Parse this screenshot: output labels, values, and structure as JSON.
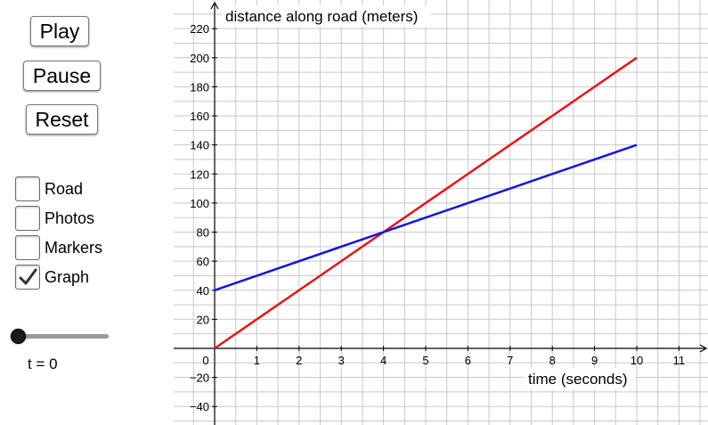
{
  "controls": {
    "play_label": "Play",
    "pause_label": "Pause",
    "reset_label": "Reset"
  },
  "checkboxes": [
    {
      "label": "Road",
      "checked": false
    },
    {
      "label": "Photos",
      "checked": false
    },
    {
      "label": "Markers",
      "checked": false
    },
    {
      "label": "Graph",
      "checked": true
    }
  ],
  "slider": {
    "value_text": "t = 0",
    "value": 0,
    "min": 0,
    "max": 10
  },
  "colors": {
    "series_red": "#e8141a",
    "series_blue": "#1414e0"
  },
  "chart_data": {
    "type": "line",
    "ylabel": "distance along road (meters)",
    "xlabel": "time (seconds)",
    "xlim": [
      0,
      11.5
    ],
    "ylim": [
      -50,
      225
    ],
    "x_ticks": [
      0,
      1,
      2,
      3,
      4,
      5,
      6,
      7,
      8,
      9,
      10,
      11
    ],
    "x_tick_labels": [
      "0",
      "1",
      "2",
      "3",
      "4",
      "5",
      "6",
      "7",
      "8",
      "9",
      "10",
      "11"
    ],
    "y_ticks": [
      -40,
      -20,
      20,
      40,
      60,
      80,
      100,
      120,
      140,
      160,
      180,
      200,
      220
    ],
    "y_tick_labels": [
      "−40",
      "−20",
      "20",
      "40",
      "60",
      "80",
      "100",
      "120",
      "140",
      "160",
      "180",
      "200",
      "220"
    ],
    "grid": true,
    "series": [
      {
        "color": "#e8141a",
        "x": [
          0,
          10
        ],
        "y": [
          0,
          200
        ]
      },
      {
        "color": "#1414e0",
        "x": [
          0,
          10
        ],
        "y": [
          40,
          140
        ]
      }
    ]
  }
}
